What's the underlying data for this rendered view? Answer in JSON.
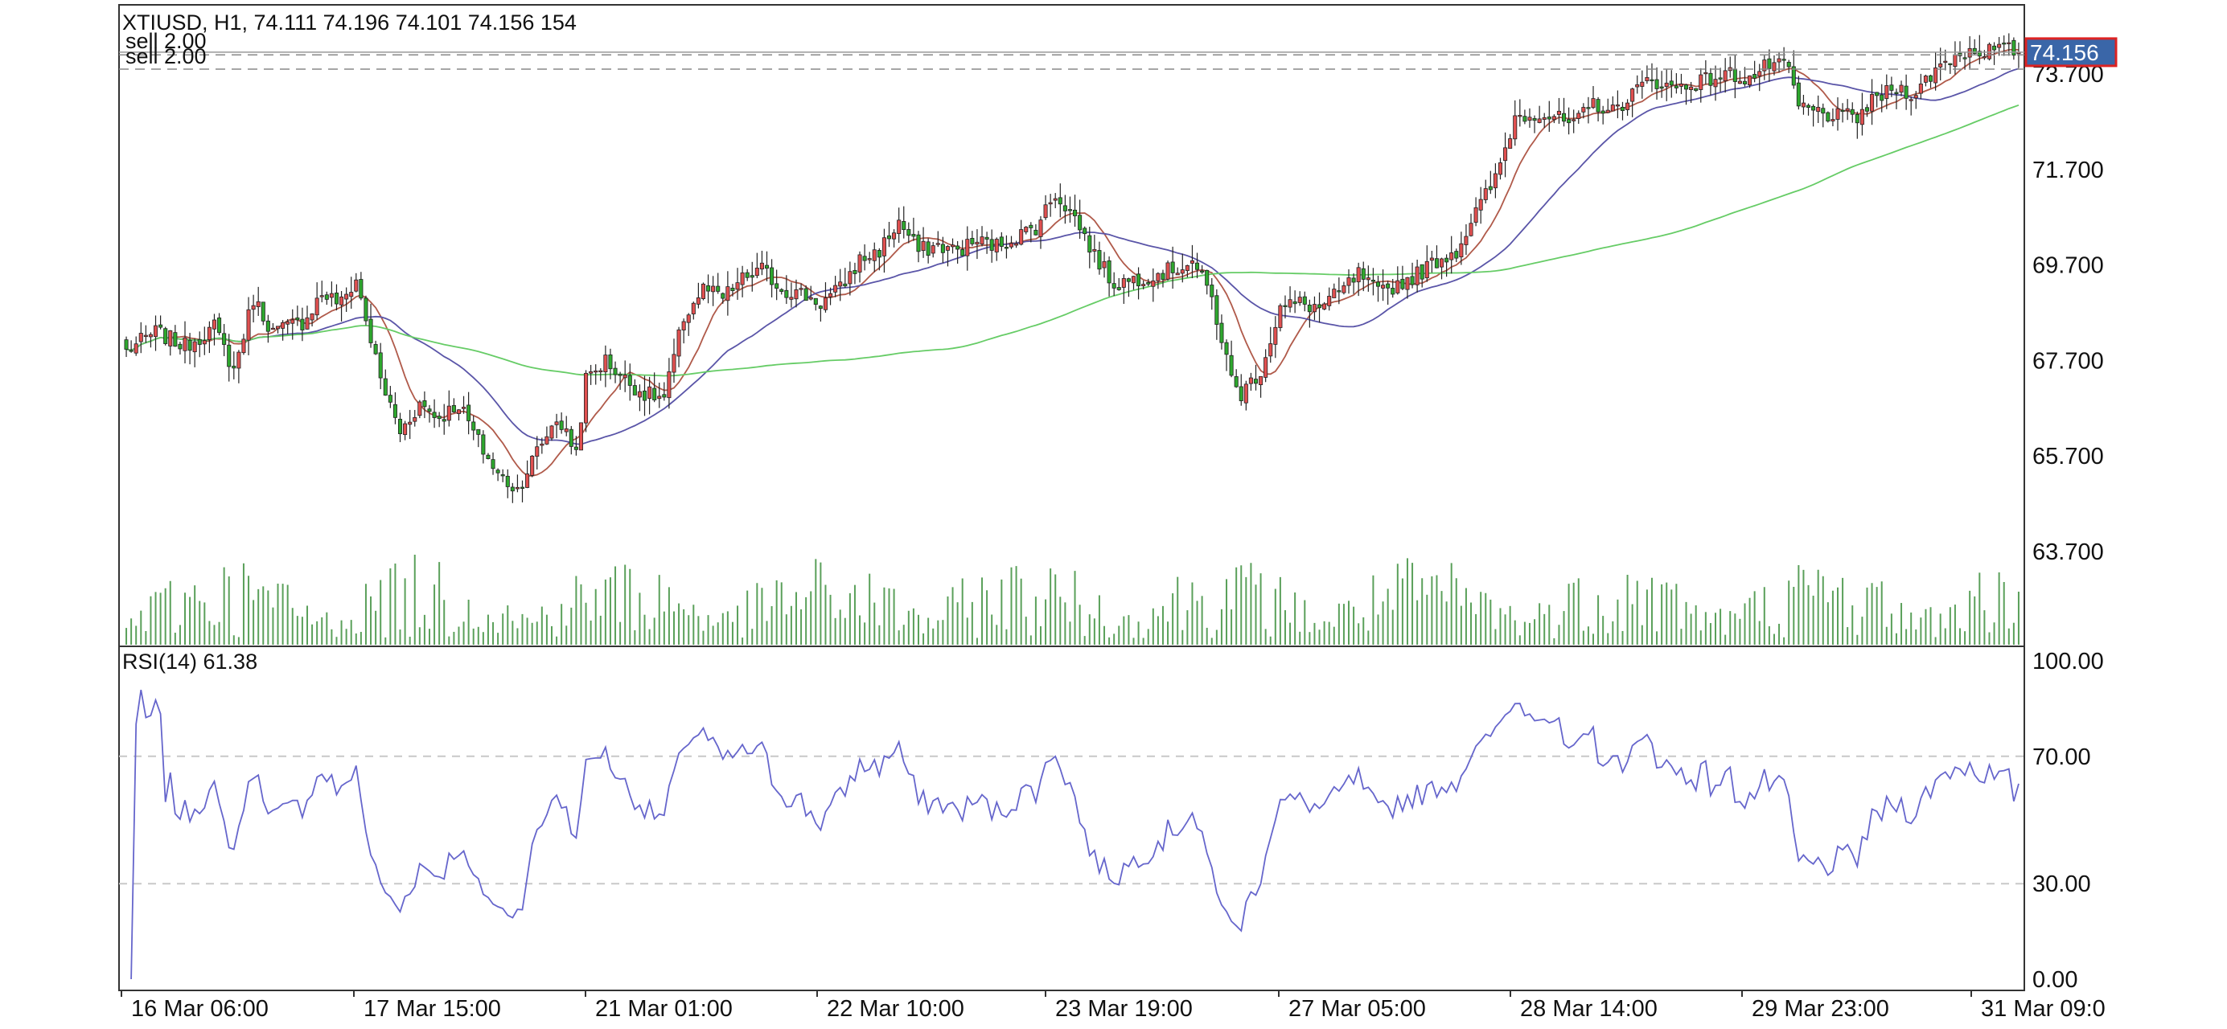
{
  "header": {
    "line": "XTIUSD, H1, 74.111 74.196 74.101 74.156 154",
    "order1": "sell 2.00",
    "order2": "sell 2.00"
  },
  "price_badge": "74.156",
  "rsi_header": "RSI(14) 61.38",
  "colors": {
    "bull": "#e05050",
    "bear": "#2ea82e",
    "ma_fast": "#b05a4a",
    "ma_mid": "#5a55a8",
    "ma_slow": "#66cc66",
    "volume": "#5aa05a",
    "rsi": "#6666cc",
    "badge_bg": "#3a66a8",
    "badge_border": "#dd2222"
  },
  "chart_data": [
    {
      "type": "candlestick",
      "title": "XTIUSD, H1",
      "y_ticks": [
        "73.700",
        "71.700",
        "69.700",
        "67.700",
        "65.700",
        "63.700"
      ],
      "ylim": [
        61.7,
        75.0
      ],
      "x_ticks": [
        "16 Mar 06:00",
        "17 Mar 15:00",
        "21 Mar 01:00",
        "22 Mar 10:00",
        "23 Mar 19:00",
        "27 Mar 05:00",
        "28 Mar 14:00",
        "29 Mar 23:00",
        "31 Mar 09:0"
      ],
      "last_price": 74.156,
      "order_lines": [
        74.1,
        73.8
      ],
      "close_path": [
        [
          0,
          67.9
        ],
        [
          6,
          68.3
        ],
        [
          12,
          68.0
        ],
        [
          18,
          68.4
        ],
        [
          22,
          67.5
        ],
        [
          26,
          69.0
        ],
        [
          30,
          68.3
        ],
        [
          36,
          68.5
        ],
        [
          40,
          69.1
        ],
        [
          44,
          68.9
        ],
        [
          47,
          69.4
        ],
        [
          52,
          67.3
        ],
        [
          56,
          66.2
        ],
        [
          60,
          66.8
        ],
        [
          64,
          66.5
        ],
        [
          68,
          66.8
        ],
        [
          72,
          66.0
        ],
        [
          76,
          65.3
        ],
        [
          80,
          65.0
        ],
        [
          84,
          65.8
        ],
        [
          88,
          66.5
        ],
        [
          92,
          65.8
        ],
        [
          94,
          67.3
        ],
        [
          98,
          67.7
        ],
        [
          102,
          67.3
        ],
        [
          106,
          67.0
        ],
        [
          110,
          66.9
        ],
        [
          114,
          68.6
        ],
        [
          118,
          69.2
        ],
        [
          122,
          69.0
        ],
        [
          126,
          69.4
        ],
        [
          130,
          69.6
        ],
        [
          134,
          69.2
        ],
        [
          138,
          69.1
        ],
        [
          142,
          68.9
        ],
        [
          146,
          69.2
        ],
        [
          150,
          69.8
        ],
        [
          154,
          70.0
        ],
        [
          158,
          70.6
        ],
        [
          162,
          70.0
        ],
        [
          166,
          70.1
        ],
        [
          170,
          70.0
        ],
        [
          174,
          70.2
        ],
        [
          178,
          70.1
        ],
        [
          182,
          70.3
        ],
        [
          186,
          70.5
        ],
        [
          190,
          71.2
        ],
        [
          194,
          70.7
        ],
        [
          198,
          69.9
        ],
        [
          202,
          69.3
        ],
        [
          206,
          69.4
        ],
        [
          210,
          69.5
        ],
        [
          214,
          69.6
        ],
        [
          218,
          69.8
        ],
        [
          222,
          69.0
        ],
        [
          226,
          67.3
        ],
        [
          228,
          67.0
        ],
        [
          232,
          67.5
        ],
        [
          236,
          68.8
        ],
        [
          240,
          68.9
        ],
        [
          244,
          68.8
        ],
        [
          248,
          69.1
        ],
        [
          252,
          69.5
        ],
        [
          256,
          69.1
        ],
        [
          260,
          69.3
        ],
        [
          264,
          69.5
        ],
        [
          268,
          69.8
        ],
        [
          272,
          70.0
        ],
        [
          276,
          70.8
        ],
        [
          280,
          71.5
        ],
        [
          284,
          72.8
        ],
        [
          288,
          72.9
        ],
        [
          292,
          72.8
        ],
        [
          296,
          72.6
        ],
        [
          300,
          73.1
        ],
        [
          304,
          72.9
        ],
        [
          308,
          73.3
        ],
        [
          312,
          73.6
        ],
        [
          316,
          73.4
        ],
        [
          320,
          73.5
        ],
        [
          324,
          73.6
        ],
        [
          328,
          73.7
        ],
        [
          332,
          73.6
        ],
        [
          336,
          73.9
        ],
        [
          340,
          73.8
        ],
        [
          342,
          73.0
        ],
        [
          346,
          72.9
        ],
        [
          350,
          72.8
        ],
        [
          354,
          72.8
        ],
        [
          358,
          73.2
        ],
        [
          362,
          73.4
        ],
        [
          366,
          73.3
        ],
        [
          370,
          73.8
        ],
        [
          374,
          74.1
        ],
        [
          378,
          74.2
        ],
        [
          382,
          74.2
        ],
        [
          386,
          74.2
        ]
      ],
      "series": [
        {
          "name": "MA fast",
          "color_key": "ma_fast"
        },
        {
          "name": "MA mid",
          "color_key": "ma_mid"
        },
        {
          "name": "MA slow",
          "color_key": "ma_slow"
        }
      ],
      "volume": {
        "max": 1300
      }
    },
    {
      "type": "line",
      "title": "RSI(14) 61.38",
      "y_ticks": [
        "100.00",
        "70.00",
        "30.00",
        "0.00"
      ],
      "ylim": [
        0,
        100
      ],
      "levels": [
        70,
        30
      ],
      "last_value": 61.38
    }
  ]
}
